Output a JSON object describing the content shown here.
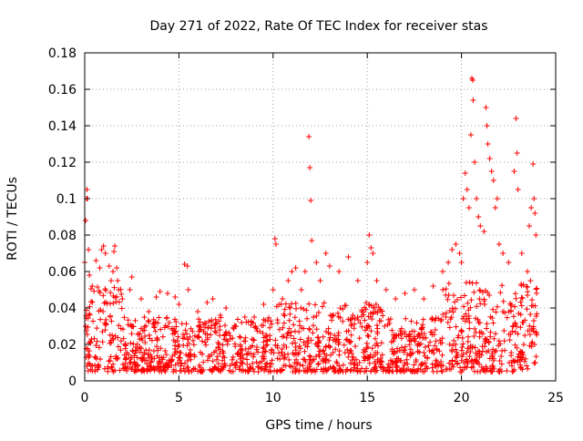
{
  "chart_data": {
    "type": "scatter",
    "title": "Day 271 of 2022, Rate Of TEC Index for receiver stas",
    "xlabel": "GPS time / hours",
    "ylabel": "ROTI / TECUs",
    "xlim": [
      0,
      25
    ],
    "ylim": [
      0,
      0.18
    ],
    "xticks": [
      0,
      5,
      10,
      15,
      20,
      25
    ],
    "xtick_labels": [
      "0",
      "5",
      "10",
      "15",
      "20",
      "25"
    ],
    "yticks": [
      0,
      0.02,
      0.04,
      0.06,
      0.08,
      0.1,
      0.12,
      0.14,
      0.16,
      0.18
    ],
    "ytick_labels": [
      "0",
      "0.02",
      "0.04",
      "0.06",
      "0.08",
      "0.1",
      "0.12",
      "0.14",
      "0.16",
      "0.18"
    ],
    "grid": true,
    "marker": "plus",
    "color": "#ff0000",
    "series": [
      {
        "points": [
          [
            0.0,
            0.065
          ],
          [
            0.05,
            0.088
          ],
          [
            0.1,
            0.1
          ],
          [
            0.12,
            0.105
          ],
          [
            0.15,
            0.1
          ],
          [
            0.2,
            0.072
          ],
          [
            0.25,
            0.058
          ],
          [
            0.4,
            0.052
          ],
          [
            0.6,
            0.066
          ],
          [
            0.8,
            0.062
          ],
          [
            0.9,
            0.072
          ],
          [
            1.0,
            0.074
          ],
          [
            1.1,
            0.07
          ],
          [
            1.3,
            0.063
          ],
          [
            1.4,
            0.055
          ],
          [
            1.5,
            0.06
          ],
          [
            1.55,
            0.071
          ],
          [
            1.6,
            0.074
          ],
          [
            1.7,
            0.062
          ],
          [
            1.75,
            0.055
          ],
          [
            1.8,
            0.05
          ],
          [
            2.0,
            0.045
          ],
          [
            2.4,
            0.05
          ],
          [
            2.5,
            0.057
          ],
          [
            3.0,
            0.045
          ],
          [
            3.4,
            0.038
          ],
          [
            3.8,
            0.046
          ],
          [
            4.0,
            0.049
          ],
          [
            4.4,
            0.048
          ],
          [
            4.8,
            0.046
          ],
          [
            5.0,
            0.042
          ],
          [
            5.3,
            0.064
          ],
          [
            5.45,
            0.063
          ],
          [
            5.5,
            0.05
          ],
          [
            6.0,
            0.038
          ],
          [
            6.5,
            0.043
          ],
          [
            6.8,
            0.045
          ],
          [
            7.2,
            0.036
          ],
          [
            7.5,
            0.04
          ],
          [
            8.0,
            0.03
          ],
          [
            8.5,
            0.035
          ],
          [
            9.0,
            0.035
          ],
          [
            9.5,
            0.042
          ],
          [
            10.0,
            0.05
          ],
          [
            10.1,
            0.078
          ],
          [
            10.15,
            0.075
          ],
          [
            10.5,
            0.045
          ],
          [
            10.8,
            0.055
          ],
          [
            11.0,
            0.06
          ],
          [
            11.2,
            0.062
          ],
          [
            11.5,
            0.05
          ],
          [
            11.7,
            0.06
          ],
          [
            11.9,
            0.134
          ],
          [
            11.95,
            0.117
          ],
          [
            12.0,
            0.099
          ],
          [
            12.05,
            0.077
          ],
          [
            12.3,
            0.065
          ],
          [
            12.5,
            0.055
          ],
          [
            12.8,
            0.07
          ],
          [
            13.0,
            0.063
          ],
          [
            13.5,
            0.06
          ],
          [
            14.0,
            0.068
          ],
          [
            14.5,
            0.055
          ],
          [
            15.0,
            0.065
          ],
          [
            15.1,
            0.08
          ],
          [
            15.2,
            0.073
          ],
          [
            15.3,
            0.07
          ],
          [
            15.5,
            0.055
          ],
          [
            16.0,
            0.05
          ],
          [
            16.5,
            0.045
          ],
          [
            17.0,
            0.048
          ],
          [
            17.5,
            0.05
          ],
          [
            18.0,
            0.045
          ],
          [
            18.5,
            0.052
          ],
          [
            19.0,
            0.06
          ],
          [
            19.3,
            0.065
          ],
          [
            19.5,
            0.072
          ],
          [
            19.7,
            0.075
          ],
          [
            19.9,
            0.07
          ],
          [
            20.0,
            0.065
          ],
          [
            20.1,
            0.1
          ],
          [
            20.2,
            0.114
          ],
          [
            20.3,
            0.105
          ],
          [
            20.4,
            0.095
          ],
          [
            20.5,
            0.135
          ],
          [
            20.55,
            0.166
          ],
          [
            20.6,
            0.165
          ],
          [
            20.62,
            0.154
          ],
          [
            20.7,
            0.12
          ],
          [
            20.8,
            0.1
          ],
          [
            20.9,
            0.09
          ],
          [
            21.0,
            0.085
          ],
          [
            21.2,
            0.082
          ],
          [
            21.3,
            0.15
          ],
          [
            21.35,
            0.14
          ],
          [
            21.4,
            0.13
          ],
          [
            21.5,
            0.122
          ],
          [
            21.6,
            0.115
          ],
          [
            21.7,
            0.11
          ],
          [
            21.8,
            0.095
          ],
          [
            21.9,
            0.1
          ],
          [
            22.0,
            0.075
          ],
          [
            22.2,
            0.07
          ],
          [
            22.5,
            0.065
          ],
          [
            22.8,
            0.115
          ],
          [
            22.9,
            0.144
          ],
          [
            22.95,
            0.125
          ],
          [
            23.0,
            0.105
          ],
          [
            23.2,
            0.07
          ],
          [
            23.5,
            0.06
          ],
          [
            23.6,
            0.085
          ],
          [
            23.7,
            0.095
          ],
          [
            23.8,
            0.119
          ],
          [
            23.85,
            0.1
          ],
          [
            23.9,
            0.092
          ],
          [
            23.95,
            0.08
          ]
        ],
        "background_band": {
          "x_range": [
            0,
            24
          ],
          "y_low": 0.005,
          "y_typical_max": 0.035,
          "points_per_hour": 65
        }
      }
    ]
  }
}
